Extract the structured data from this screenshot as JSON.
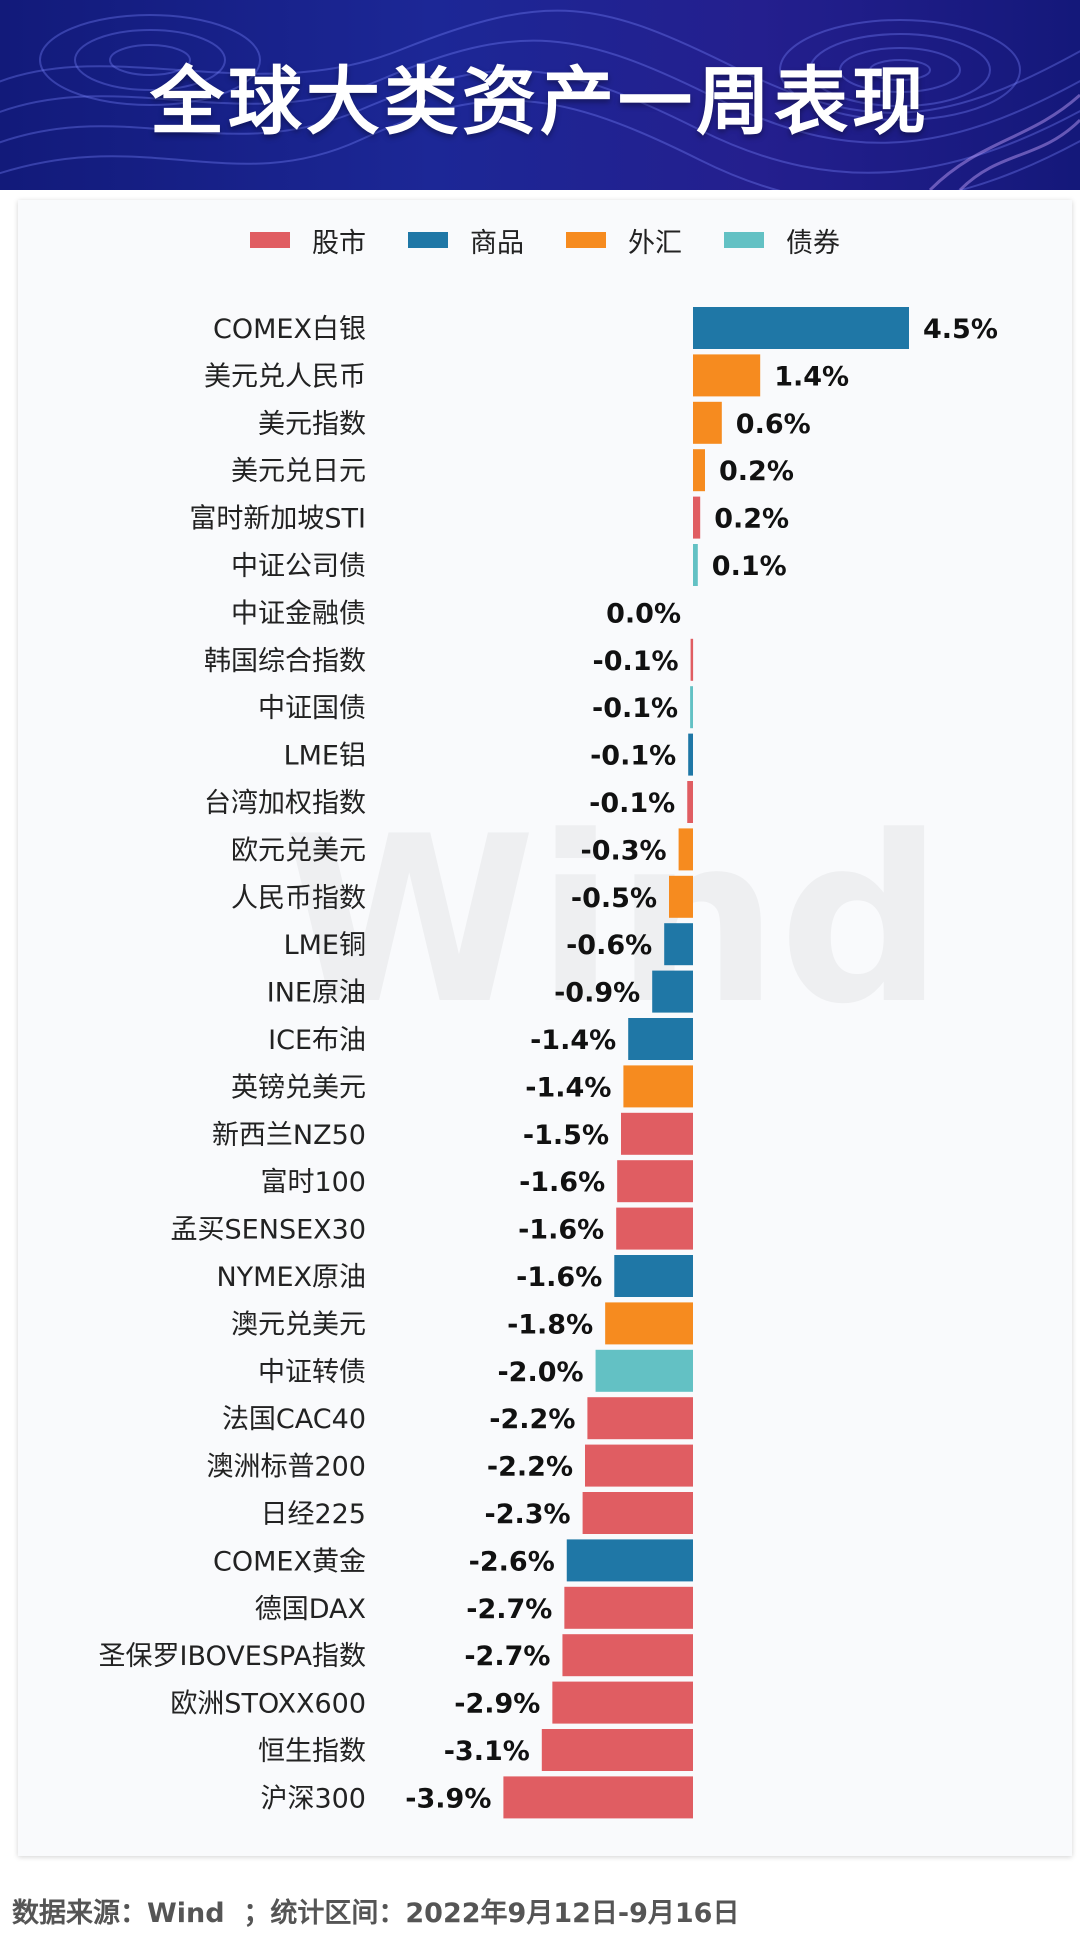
{
  "header": {
    "title": "全球大类资产一周表现"
  },
  "colors": {
    "stock": "#e05d62",
    "commodity": "#1f77a6",
    "fx": "#f68b1f",
    "bond": "#63c1c4"
  },
  "chart_data": {
    "type": "bar",
    "orientation": "horizontal",
    "legend_position": "top-center",
    "legend": [
      {
        "key": "stock",
        "label": "股市"
      },
      {
        "key": "commodity",
        "label": "商品"
      },
      {
        "key": "fx",
        "label": "外汇"
      },
      {
        "key": "bond",
        "label": "债券"
      }
    ],
    "xlim": [
      -3.9,
      4.5
    ],
    "grid": false,
    "bars": [
      {
        "label": "COMEX白银",
        "value": 4.5,
        "text": "4.5%",
        "cat": "commodity"
      },
      {
        "label": "美元兑人民币",
        "value": 1.4,
        "text": "1.4%",
        "cat": "fx"
      },
      {
        "label": "美元指数",
        "value": 0.6,
        "text": "0.6%",
        "cat": "fx"
      },
      {
        "label": "美元兑日元",
        "value": 0.25,
        "text": "0.2%",
        "cat": "fx"
      },
      {
        "label": "富时新加坡STI",
        "value": 0.15,
        "text": "0.2%",
        "cat": "stock"
      },
      {
        "label": "中证公司债",
        "value": 0.1,
        "text": "0.1%",
        "cat": "bond"
      },
      {
        "label": "中证金融债",
        "value": 0.0,
        "text": "0.0%",
        "cat": "bond"
      },
      {
        "label": "韩国综合指数",
        "value": -0.05,
        "text": "-0.1%",
        "cat": "stock"
      },
      {
        "label": "中证国债",
        "value": -0.06,
        "text": "-0.1%",
        "cat": "bond"
      },
      {
        "label": "LME铝",
        "value": -0.1,
        "text": "-0.1%",
        "cat": "commodity"
      },
      {
        "label": "台湾加权指数",
        "value": -0.12,
        "text": "-0.1%",
        "cat": "stock"
      },
      {
        "label": "欧元兑美元",
        "value": -0.3,
        "text": "-0.3%",
        "cat": "fx"
      },
      {
        "label": "人民币指数",
        "value": -0.5,
        "text": "-0.5%",
        "cat": "fx"
      },
      {
        "label": "LME铜",
        "value": -0.6,
        "text": "-0.6%",
        "cat": "commodity"
      },
      {
        "label": "INE原油",
        "value": -0.85,
        "text": "-0.9%",
        "cat": "commodity"
      },
      {
        "label": "ICE布油",
        "value": -1.35,
        "text": "-1.4%",
        "cat": "commodity"
      },
      {
        "label": "英镑兑美元",
        "value": -1.45,
        "text": "-1.4%",
        "cat": "fx"
      },
      {
        "label": "新西兰NZ50",
        "value": -1.5,
        "text": "-1.5%",
        "cat": "stock"
      },
      {
        "label": "富时100",
        "value": -1.58,
        "text": "-1.6%",
        "cat": "stock"
      },
      {
        "label": "孟买SENSEX30",
        "value": -1.6,
        "text": "-1.6%",
        "cat": "stock"
      },
      {
        "label": "NYMEX原油",
        "value": -1.64,
        "text": "-1.6%",
        "cat": "commodity"
      },
      {
        "label": "澳元兑美元",
        "value": -1.83,
        "text": "-1.8%",
        "cat": "fx"
      },
      {
        "label": "中证转债",
        "value": -2.03,
        "text": "-2.0%",
        "cat": "bond"
      },
      {
        "label": "法国CAC40",
        "value": -2.2,
        "text": "-2.2%",
        "cat": "stock"
      },
      {
        "label": "澳洲标普200",
        "value": -2.25,
        "text": "-2.2%",
        "cat": "stock"
      },
      {
        "label": "日经225",
        "value": -2.3,
        "text": "-2.3%",
        "cat": "stock"
      },
      {
        "label": "COMEX黄金",
        "value": -2.63,
        "text": "-2.6%",
        "cat": "commodity"
      },
      {
        "label": "德国DAX",
        "value": -2.68,
        "text": "-2.7%",
        "cat": "stock"
      },
      {
        "label": "圣保罗IBOVESPA指数",
        "value": -2.72,
        "text": "-2.7%",
        "cat": "stock"
      },
      {
        "label": "欧洲STOXX600",
        "value": -2.93,
        "text": "-2.9%",
        "cat": "stock"
      },
      {
        "label": "恒生指数",
        "value": -3.15,
        "text": "-3.1%",
        "cat": "stock"
      },
      {
        "label": "沪深300",
        "value": -3.95,
        "text": "-3.9%",
        "cat": "stock"
      }
    ]
  },
  "watermark": {
    "text": "Wind"
  },
  "footer": {
    "text": "数据来源：Wind  ；统计区间：2022年9月12日-9月16日"
  }
}
